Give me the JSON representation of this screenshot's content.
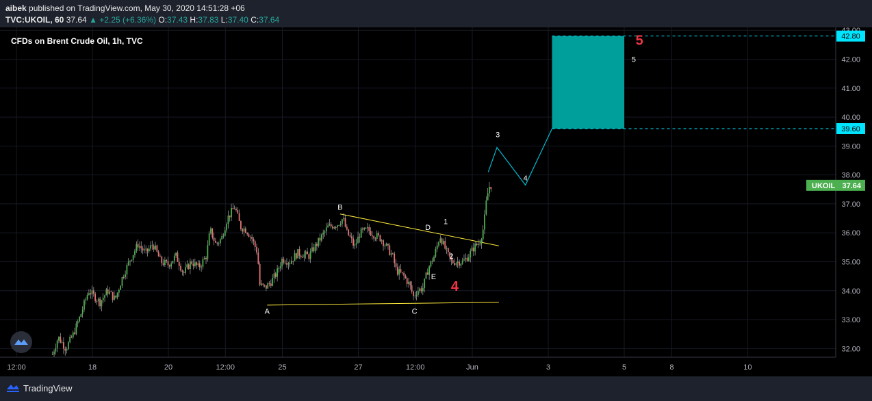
{
  "header": {
    "user": "aibek",
    "published_text": "published on TradingView.com, May 30, 2020 14:51:28 +06",
    "symbol": "TVC:UKOIL, 60",
    "last": "37.64",
    "change_arrow": "▲",
    "change": "+2.25 (+6.36%)",
    "o_label": "O:",
    "o_val": "37.43",
    "h_label": "H:",
    "h_val": "37.83",
    "l_label": "L:",
    "l_val": "37.40",
    "c_label": "C:",
    "c_val": "37.64"
  },
  "footer": {
    "brand": "TradingView",
    "logo_icon": "tradingview-logo-icon"
  },
  "chart_data": {
    "type": "candlestick",
    "title": "CFDs on Brent Crude Oil, 1h, TVC",
    "ylim": [
      31.7,
      43.1
    ],
    "price_ticks": [
      "32.00",
      "33.00",
      "34.00",
      "35.00",
      "36.00",
      "37.00",
      "38.00",
      "39.00",
      "40.00",
      "41.00",
      "42.00",
      "43.00"
    ],
    "x_ticks": [
      {
        "label": "12:00",
        "t": -2
      },
      {
        "label": "18",
        "t": 0
      },
      {
        "label": "20",
        "t": 2
      },
      {
        "label": "12:00",
        "t": 3.5
      },
      {
        "label": "25",
        "t": 5
      },
      {
        "label": "27",
        "t": 7
      },
      {
        "label": "12:00",
        "t": 8.5
      },
      {
        "label": "Jun",
        "t": 10
      },
      {
        "label": "3",
        "t": 12
      },
      {
        "label": "5",
        "t": 14
      },
      {
        "label": "8",
        "t": 15.25
      },
      {
        "label": "10",
        "t": 17.25
      }
    ],
    "last_price": {
      "symbol": "UKOIL",
      "value": 37.64,
      "label": "37.64",
      "color": "#4caf50"
    },
    "price_path": [
      [
        -1.05,
        31.8
      ],
      [
        -0.9,
        32.4
      ],
      [
        -0.7,
        32.0
      ],
      [
        -0.5,
        32.5
      ],
      [
        -0.3,
        33.2
      ],
      [
        -0.1,
        34.0
      ],
      [
        0.2,
        33.6
      ],
      [
        0.4,
        34.0
      ],
      [
        0.6,
        33.7
      ],
      [
        0.8,
        34.5
      ],
      [
        1.0,
        35.1
      ],
      [
        1.2,
        35.6
      ],
      [
        1.4,
        35.3
      ],
      [
        1.6,
        35.6
      ],
      [
        1.8,
        35.0
      ],
      [
        2.0,
        34.9
      ],
      [
        2.2,
        35.2
      ],
      [
        2.4,
        34.6
      ],
      [
        2.6,
        35.0
      ],
      [
        2.8,
        34.8
      ],
      [
        3.0,
        35.2
      ],
      [
        3.1,
        36.1
      ],
      [
        3.25,
        35.6
      ],
      [
        3.4,
        35.8
      ],
      [
        3.55,
        36.5
      ],
      [
        3.75,
        36.9
      ],
      [
        3.9,
        36.2
      ],
      [
        4.05,
        36.1
      ],
      [
        4.2,
        35.8
      ],
      [
        4.35,
        35.3
      ],
      [
        4.4,
        34.2
      ],
      [
        4.55,
        34.1
      ],
      [
        4.7,
        34.3
      ],
      [
        4.85,
        34.6
      ],
      [
        5.0,
        35.1
      ],
      [
        5.2,
        35.0
      ],
      [
        5.4,
        35.3
      ],
      [
        5.7,
        35.2
      ],
      [
        5.95,
        35.7
      ],
      [
        6.2,
        36.2
      ],
      [
        6.45,
        36.3
      ],
      [
        6.6,
        36.5
      ],
      [
        6.7,
        36.0
      ],
      [
        6.8,
        35.8
      ],
      [
        6.9,
        35.5
      ],
      [
        7.05,
        36.0
      ],
      [
        7.25,
        36.1
      ],
      [
        7.45,
        35.9
      ],
      [
        7.6,
        35.8
      ],
      [
        7.75,
        35.5
      ],
      [
        7.9,
        35.2
      ],
      [
        8.0,
        34.7
      ],
      [
        8.2,
        34.5
      ],
      [
        8.35,
        34.2
      ],
      [
        8.45,
        33.8
      ],
      [
        8.55,
        34.0
      ],
      [
        8.7,
        34.1
      ],
      [
        8.85,
        34.8
      ],
      [
        9.0,
        35.2
      ],
      [
        9.15,
        35.9
      ],
      [
        9.3,
        35.4
      ],
      [
        9.45,
        35.0
      ],
      [
        9.6,
        35.0
      ],
      [
        9.75,
        35.0
      ],
      [
        9.9,
        35.2
      ],
      [
        10.05,
        35.5
      ],
      [
        10.2,
        35.7
      ],
      [
        10.3,
        36.2
      ],
      [
        10.38,
        37.2
      ],
      [
        10.45,
        37.6
      ],
      [
        10.5,
        37.64
      ]
    ],
    "wave_labels": [
      {
        "text": "A",
        "t": 4.6,
        "y": 33.2,
        "color": "#ffffff"
      },
      {
        "text": "B",
        "t": 6.52,
        "y": 36.8,
        "color": "#ffffff"
      },
      {
        "text": "C",
        "t": 8.48,
        "y": 33.2,
        "color": "#ffffff"
      },
      {
        "text": "D",
        "t": 8.83,
        "y": 36.1,
        "color": "#ffffff"
      },
      {
        "text": "E",
        "t": 8.98,
        "y": 34.4,
        "color": "#ffffff"
      },
      {
        "text": "1",
        "t": 9.3,
        "y": 36.3,
        "color": "#ffffff"
      },
      {
        "text": "2",
        "t": 9.45,
        "y": 35.1,
        "color": "#ffffff"
      },
      {
        "text": "4",
        "t": 9.54,
        "y": 34.0,
        "color": "#f23645",
        "big": true
      },
      {
        "text": "3",
        "t": 10.67,
        "y": 39.3,
        "color": "#ffffff"
      },
      {
        "text": "4",
        "t": 11.4,
        "y": 37.8,
        "color": "#ffffff"
      },
      {
        "text": "5",
        "t": 14.25,
        "y": 41.9,
        "color": "#ffffff"
      },
      {
        "text": "5",
        "t": 14.4,
        "y": 42.5,
        "color": "#f23645",
        "big": true
      }
    ],
    "triangle_lines": [
      {
        "from": [
          4.6,
          33.5
        ],
        "to": [
          10.7,
          33.6
        ],
        "color": "#ffeb3b"
      },
      {
        "from": [
          6.52,
          36.65
        ],
        "to": [
          10.7,
          35.55
        ],
        "color": "#ffeb3b"
      }
    ],
    "projection": {
      "points": [
        [
          10.42,
          38.1
        ],
        [
          10.65,
          38.95
        ],
        [
          11.4,
          37.65
        ],
        [
          12.1,
          39.6
        ]
      ],
      "color": "#00bcd4"
    },
    "target_box": {
      "t_start": 12.1,
      "t_end": 14.0,
      "y_low": 39.6,
      "y_high": 42.8,
      "color": "#009f9c"
    },
    "level_labels": [
      {
        "value": 42.8,
        "label": "42.80",
        "color": "#00e5ff"
      },
      {
        "value": 39.6,
        "label": "39.60",
        "color": "#00e5ff"
      }
    ]
  }
}
